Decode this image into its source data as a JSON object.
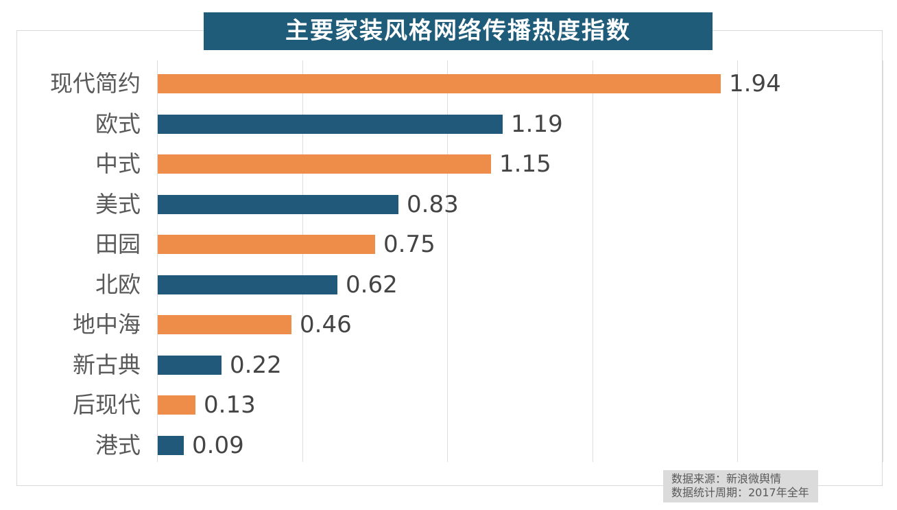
{
  "title": "主要家装风格网络传播热度指数",
  "colors": {
    "banner_bg": "#1F5C7A",
    "bar_orange": "#ED8D49",
    "bar_blue": "#20597A",
    "grid": "#DCDCDC",
    "frame": "#D9D9D9",
    "category_label": "#595959",
    "value_label": "#444444",
    "source_bg": "#DBDBDB",
    "source_text": "#595959",
    "title_text": "#FFFFFF"
  },
  "chart_data": {
    "type": "bar",
    "orientation": "horizontal",
    "title": "主要家装风格网络传播热度指数",
    "categories": [
      "现代简约",
      "欧式",
      "中式",
      "美式",
      "田园",
      "北欧",
      "地中海",
      "新古典",
      "后现代",
      "港式"
    ],
    "values": [
      1.94,
      1.19,
      1.15,
      0.83,
      0.75,
      0.62,
      0.46,
      0.22,
      0.13,
      0.09
    ],
    "value_labels": [
      "1.94",
      "1.19",
      "1.15",
      "0.83",
      "0.75",
      "0.62",
      "0.46",
      "0.22",
      "0.13",
      "0.09"
    ],
    "xlabel": "",
    "ylabel": "",
    "xlim": [
      0,
      2.5
    ],
    "grid_step": 0.5,
    "grid": "on",
    "legend": "none",
    "bar_colors_alternate": [
      "#ED8D49",
      "#20597A"
    ]
  },
  "source": {
    "line1": "数据来源：新浪微舆情",
    "line2": "数据统计周期：2017年全年"
  }
}
